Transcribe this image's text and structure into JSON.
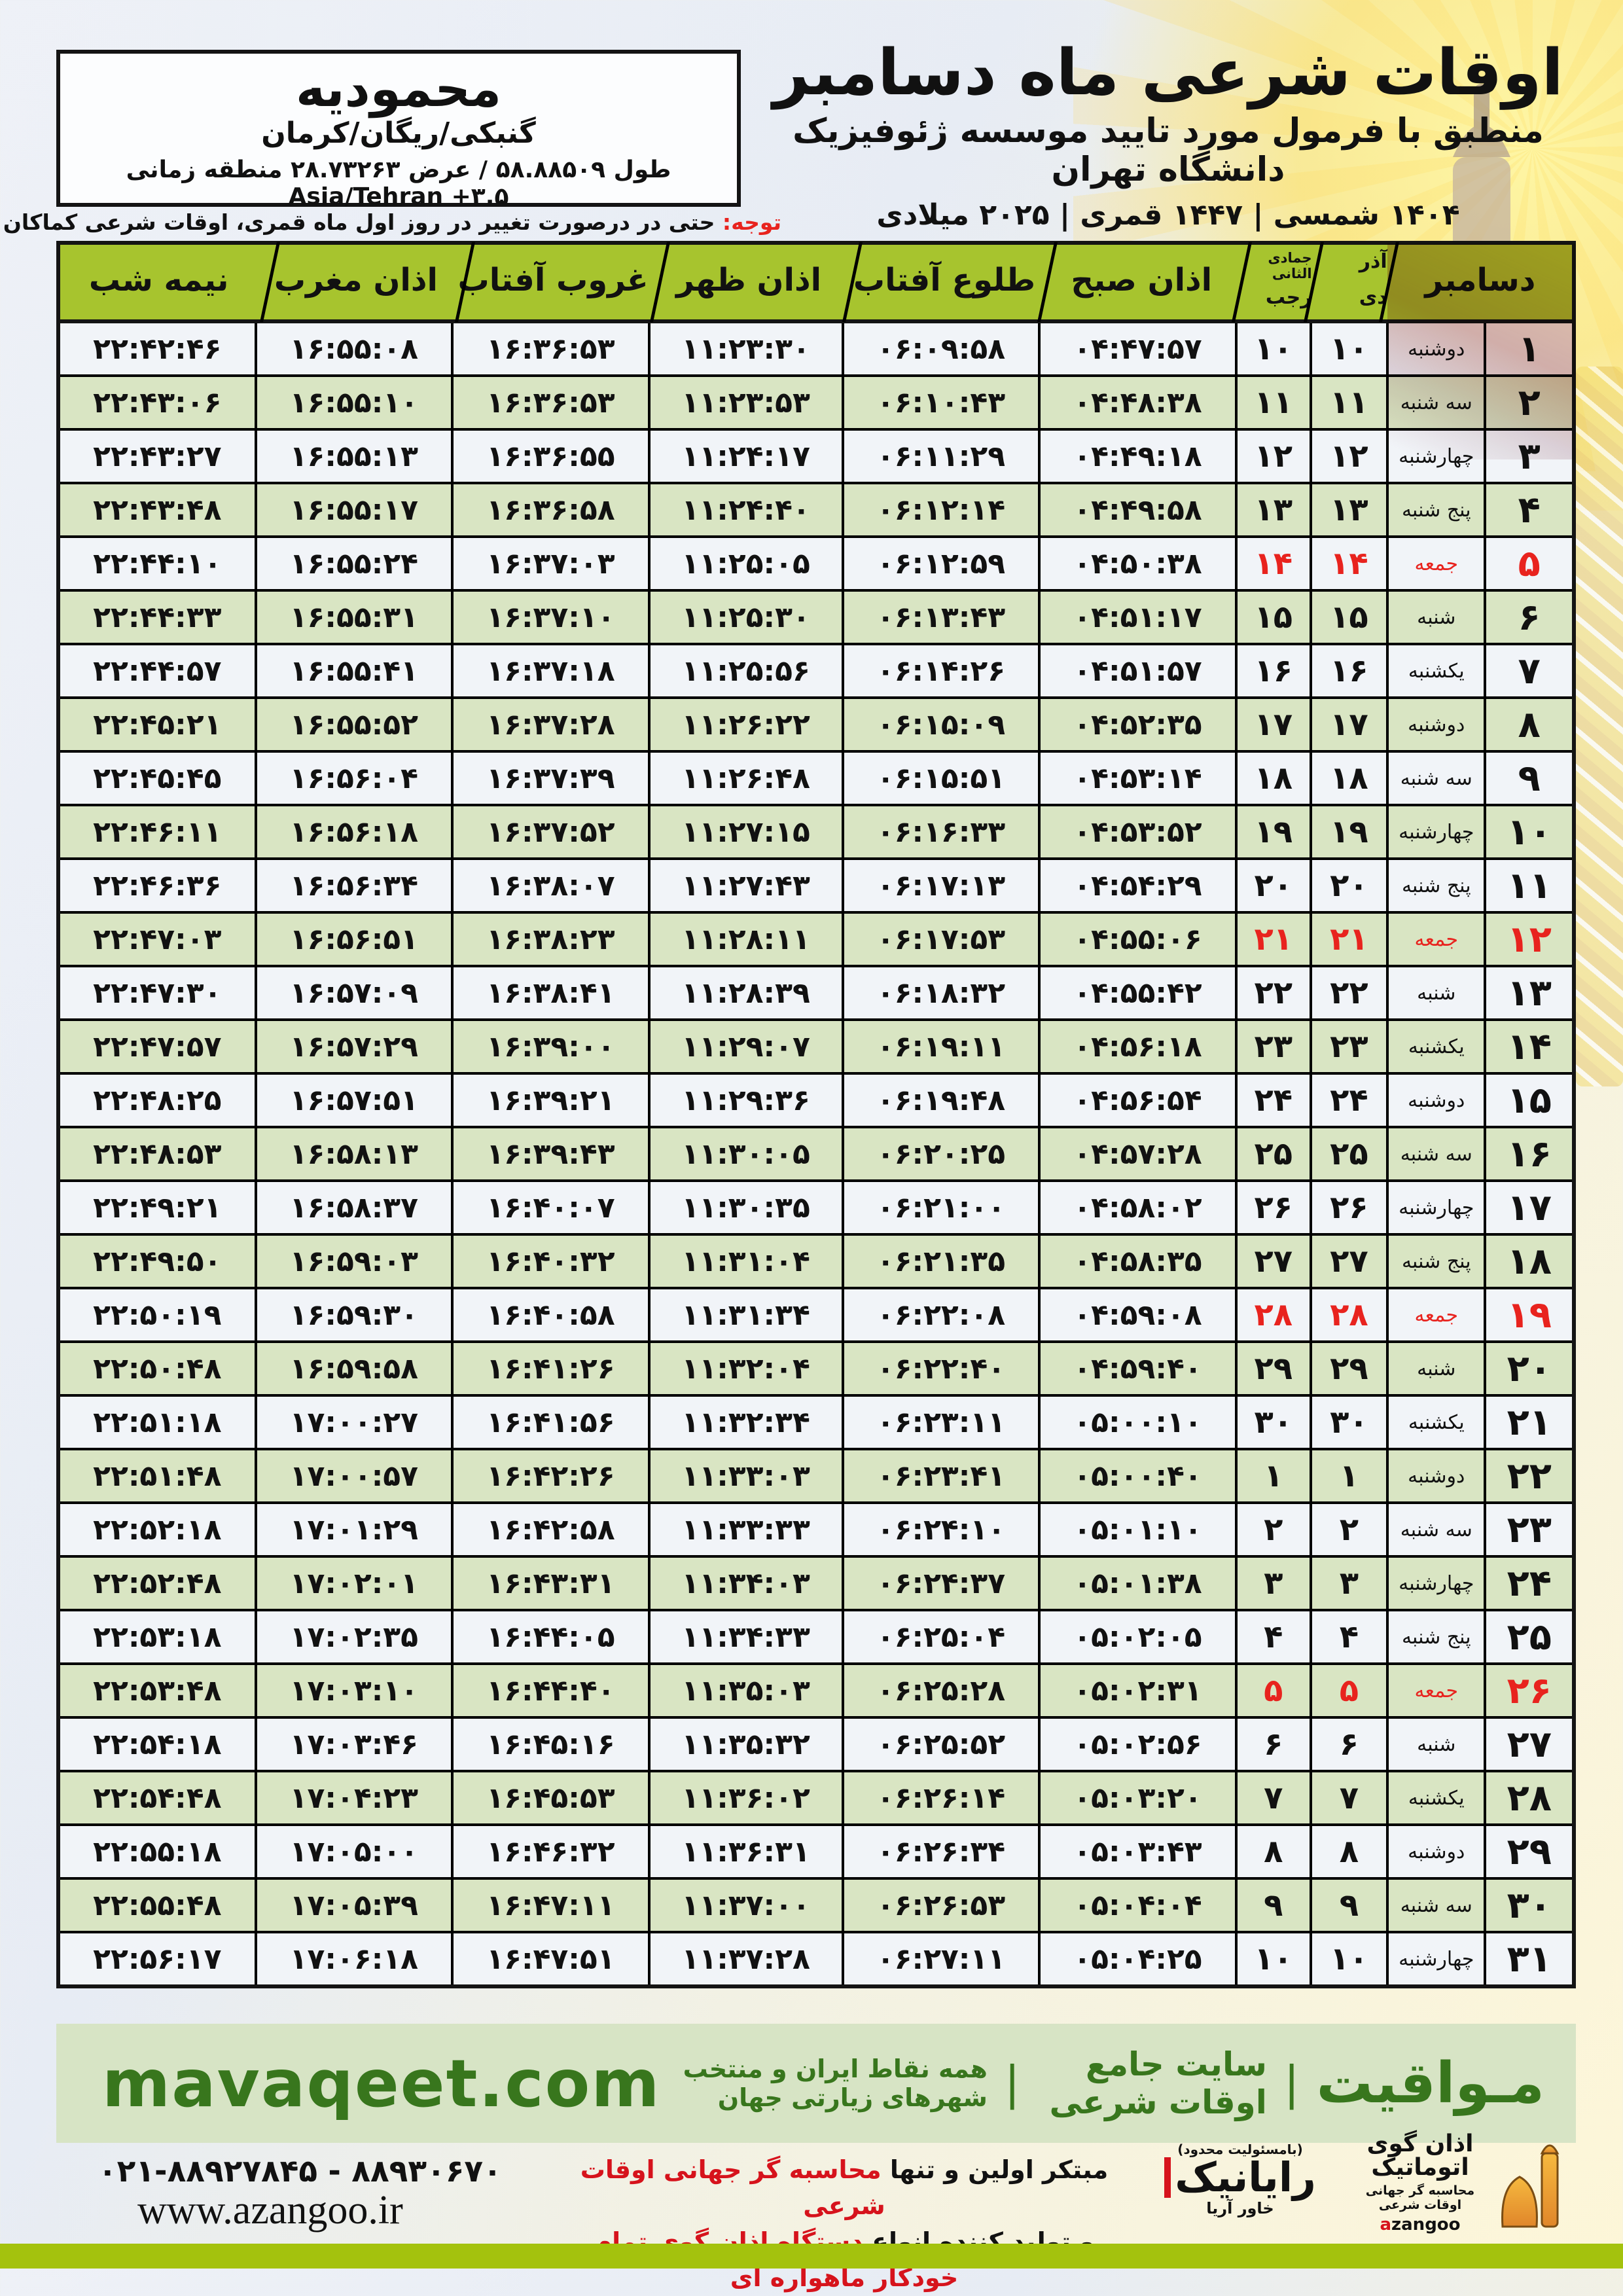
{
  "location_box": {
    "city": "محمودیه",
    "region": "گنبکی/ریگان/کرمان",
    "coords_fa": "طول ۵۸.۸۸۵۰۹ / عرض ۲۸.۷۳۲۶۳ منطقه زمانی",
    "coords_tz": "Asia/Tehran +۳.۵"
  },
  "header": {
    "title": "اوقات شرعی ماه دسامبر",
    "subtitle": "منطبق با فرمول مورد تایید موسسه ژئوفیزیک دانشگاه تهران",
    "years": "۱۴۰۴ شمسی | ۱۴۴۷ قمری | ۲۰۲۵ میلادی"
  },
  "notice": {
    "label": "توجه:",
    "text": " حتی در درصورت تغییر در روز اول ماه قمری، اوقات شرعی کماکان برای روزهای شمسی و میلادی معتبر است."
  },
  "table": {
    "headers": {
      "december": "دسامبر",
      "azar": "آذر",
      "dey": "دی",
      "jumada": "جمادی الثانی",
      "rajab": "رجب",
      "sobh": "اذان صبح",
      "sunrise": "طلوع آفتاب",
      "zohr": "اذان ظهر",
      "sunset": "غروب آفتاب",
      "maghreb": "اذان مغرب",
      "midnight": "نیمه شب"
    },
    "rows": [
      {
        "day": "۱",
        "weekday": "دوشنبه",
        "dey": "۱۰",
        "rajab": "۱۰",
        "sobh": "۰۴:۴۷:۵۷",
        "sunrise": "۰۶:۰۹:۵۸",
        "zohr": "۱۱:۲۳:۳۰",
        "sunset": "۱۶:۳۶:۵۳",
        "maghreb": "۱۶:۵۵:۰۸",
        "midnight": "۲۲:۴۲:۴۶",
        "friday": false
      },
      {
        "day": "۲",
        "weekday": "سه شنبه",
        "dey": "۱۱",
        "rajab": "۱۱",
        "sobh": "۰۴:۴۸:۳۸",
        "sunrise": "۰۶:۱۰:۴۳",
        "zohr": "۱۱:۲۳:۵۳",
        "sunset": "۱۶:۳۶:۵۳",
        "maghreb": "۱۶:۵۵:۱۰",
        "midnight": "۲۲:۴۳:۰۶",
        "friday": false
      },
      {
        "day": "۳",
        "weekday": "چهارشنبه",
        "dey": "۱۲",
        "rajab": "۱۲",
        "sobh": "۰۴:۴۹:۱۸",
        "sunrise": "۰۶:۱۱:۲۹",
        "zohr": "۱۱:۲۴:۱۷",
        "sunset": "۱۶:۳۶:۵۵",
        "maghreb": "۱۶:۵۵:۱۳",
        "midnight": "۲۲:۴۳:۲۷",
        "friday": false
      },
      {
        "day": "۴",
        "weekday": "پنج شنبه",
        "dey": "۱۳",
        "rajab": "۱۳",
        "sobh": "۰۴:۴۹:۵۸",
        "sunrise": "۰۶:۱۲:۱۴",
        "zohr": "۱۱:۲۴:۴۰",
        "sunset": "۱۶:۳۶:۵۸",
        "maghreb": "۱۶:۵۵:۱۷",
        "midnight": "۲۲:۴۳:۴۸",
        "friday": false
      },
      {
        "day": "۵",
        "weekday": "جمعه",
        "dey": "۱۴",
        "rajab": "۱۴",
        "sobh": "۰۴:۵۰:۳۸",
        "sunrise": "۰۶:۱۲:۵۹",
        "zohr": "۱۱:۲۵:۰۵",
        "sunset": "۱۶:۳۷:۰۳",
        "maghreb": "۱۶:۵۵:۲۴",
        "midnight": "۲۲:۴۴:۱۰",
        "friday": true
      },
      {
        "day": "۶",
        "weekday": "شنبه",
        "dey": "۱۵",
        "rajab": "۱۵",
        "sobh": "۰۴:۵۱:۱۷",
        "sunrise": "۰۶:۱۳:۴۳",
        "zohr": "۱۱:۲۵:۳۰",
        "sunset": "۱۶:۳۷:۱۰",
        "maghreb": "۱۶:۵۵:۳۱",
        "midnight": "۲۲:۴۴:۳۳",
        "friday": false
      },
      {
        "day": "۷",
        "weekday": "یکشنبه",
        "dey": "۱۶",
        "rajab": "۱۶",
        "sobh": "۰۴:۵۱:۵۷",
        "sunrise": "۰۶:۱۴:۲۶",
        "zohr": "۱۱:۲۵:۵۶",
        "sunset": "۱۶:۳۷:۱۸",
        "maghreb": "۱۶:۵۵:۴۱",
        "midnight": "۲۲:۴۴:۵۷",
        "friday": false
      },
      {
        "day": "۸",
        "weekday": "دوشنبه",
        "dey": "۱۷",
        "rajab": "۱۷",
        "sobh": "۰۴:۵۲:۳۵",
        "sunrise": "۰۶:۱۵:۰۹",
        "zohr": "۱۱:۲۶:۲۲",
        "sunset": "۱۶:۳۷:۲۸",
        "maghreb": "۱۶:۵۵:۵۲",
        "midnight": "۲۲:۴۵:۲۱",
        "friday": false
      },
      {
        "day": "۹",
        "weekday": "سه شنبه",
        "dey": "۱۸",
        "rajab": "۱۸",
        "sobh": "۰۴:۵۳:۱۴",
        "sunrise": "۰۶:۱۵:۵۱",
        "zohr": "۱۱:۲۶:۴۸",
        "sunset": "۱۶:۳۷:۳۹",
        "maghreb": "۱۶:۵۶:۰۴",
        "midnight": "۲۲:۴۵:۴۵",
        "friday": false
      },
      {
        "day": "۱۰",
        "weekday": "چهارشنبه",
        "dey": "۱۹",
        "rajab": "۱۹",
        "sobh": "۰۴:۵۳:۵۲",
        "sunrise": "۰۶:۱۶:۳۳",
        "zohr": "۱۱:۲۷:۱۵",
        "sunset": "۱۶:۳۷:۵۲",
        "maghreb": "۱۶:۵۶:۱۸",
        "midnight": "۲۲:۴۶:۱۱",
        "friday": false
      },
      {
        "day": "۱۱",
        "weekday": "پنج شنبه",
        "dey": "۲۰",
        "rajab": "۲۰",
        "sobh": "۰۴:۵۴:۲۹",
        "sunrise": "۰۶:۱۷:۱۳",
        "zohr": "۱۱:۲۷:۴۳",
        "sunset": "۱۶:۳۸:۰۷",
        "maghreb": "۱۶:۵۶:۳۴",
        "midnight": "۲۲:۴۶:۳۶",
        "friday": false
      },
      {
        "day": "۱۲",
        "weekday": "جمعه",
        "dey": "۲۱",
        "rajab": "۲۱",
        "sobh": "۰۴:۵۵:۰۶",
        "sunrise": "۰۶:۱۷:۵۳",
        "zohr": "۱۱:۲۸:۱۱",
        "sunset": "۱۶:۳۸:۲۳",
        "maghreb": "۱۶:۵۶:۵۱",
        "midnight": "۲۲:۴۷:۰۳",
        "friday": true
      },
      {
        "day": "۱۳",
        "weekday": "شنبه",
        "dey": "۲۲",
        "rajab": "۲۲",
        "sobh": "۰۴:۵۵:۴۲",
        "sunrise": "۰۶:۱۸:۳۲",
        "zohr": "۱۱:۲۸:۳۹",
        "sunset": "۱۶:۳۸:۴۱",
        "maghreb": "۱۶:۵۷:۰۹",
        "midnight": "۲۲:۴۷:۳۰",
        "friday": false
      },
      {
        "day": "۱۴",
        "weekday": "یکشنبه",
        "dey": "۲۳",
        "rajab": "۲۳",
        "sobh": "۰۴:۵۶:۱۸",
        "sunrise": "۰۶:۱۹:۱۱",
        "zohr": "۱۱:۲۹:۰۷",
        "sunset": "۱۶:۳۹:۰۰",
        "maghreb": "۱۶:۵۷:۲۹",
        "midnight": "۲۲:۴۷:۵۷",
        "friday": false
      },
      {
        "day": "۱۵",
        "weekday": "دوشنبه",
        "dey": "۲۴",
        "rajab": "۲۴",
        "sobh": "۰۴:۵۶:۵۴",
        "sunrise": "۰۶:۱۹:۴۸",
        "zohr": "۱۱:۲۹:۳۶",
        "sunset": "۱۶:۳۹:۲۱",
        "maghreb": "۱۶:۵۷:۵۱",
        "midnight": "۲۲:۴۸:۲۵",
        "friday": false
      },
      {
        "day": "۱۶",
        "weekday": "سه شنبه",
        "dey": "۲۵",
        "rajab": "۲۵",
        "sobh": "۰۴:۵۷:۲۸",
        "sunrise": "۰۶:۲۰:۲۵",
        "zohr": "۱۱:۳۰:۰۵",
        "sunset": "۱۶:۳۹:۴۳",
        "maghreb": "۱۶:۵۸:۱۳",
        "midnight": "۲۲:۴۸:۵۳",
        "friday": false
      },
      {
        "day": "۱۷",
        "weekday": "چهارشنبه",
        "dey": "۲۶",
        "rajab": "۲۶",
        "sobh": "۰۴:۵۸:۰۲",
        "sunrise": "۰۶:۲۱:۰۰",
        "zohr": "۱۱:۳۰:۳۵",
        "sunset": "۱۶:۴۰:۰۷",
        "maghreb": "۱۶:۵۸:۳۷",
        "midnight": "۲۲:۴۹:۲۱",
        "friday": false
      },
      {
        "day": "۱۸",
        "weekday": "پنج شنبه",
        "dey": "۲۷",
        "rajab": "۲۷",
        "sobh": "۰۴:۵۸:۳۵",
        "sunrise": "۰۶:۲۱:۳۵",
        "zohr": "۱۱:۳۱:۰۴",
        "sunset": "۱۶:۴۰:۳۲",
        "maghreb": "۱۶:۵۹:۰۳",
        "midnight": "۲۲:۴۹:۵۰",
        "friday": false
      },
      {
        "day": "۱۹",
        "weekday": "جمعه",
        "dey": "۲۸",
        "rajab": "۲۸",
        "sobh": "۰۴:۵۹:۰۸",
        "sunrise": "۰۶:۲۲:۰۸",
        "zohr": "۱۱:۳۱:۳۴",
        "sunset": "۱۶:۴۰:۵۸",
        "maghreb": "۱۶:۵۹:۳۰",
        "midnight": "۲۲:۵۰:۱۹",
        "friday": true
      },
      {
        "day": "۲۰",
        "weekday": "شنبه",
        "dey": "۲۹",
        "rajab": "۲۹",
        "sobh": "۰۴:۵۹:۴۰",
        "sunrise": "۰۶:۲۲:۴۰",
        "zohr": "۱۱:۳۲:۰۴",
        "sunset": "۱۶:۴۱:۲۶",
        "maghreb": "۱۶:۵۹:۵۸",
        "midnight": "۲۲:۵۰:۴۸",
        "friday": false
      },
      {
        "day": "۲۱",
        "weekday": "یکشنبه",
        "dey": "۳۰",
        "rajab": "۳۰",
        "sobh": "۰۵:۰۰:۱۰",
        "sunrise": "۰۶:۲۳:۱۱",
        "zohr": "۱۱:۳۲:۳۴",
        "sunset": "۱۶:۴۱:۵۶",
        "maghreb": "۱۷:۰۰:۲۷",
        "midnight": "۲۲:۵۱:۱۸",
        "friday": false
      },
      {
        "day": "۲۲",
        "weekday": "دوشنبه",
        "dey": "۱",
        "rajab": "۱",
        "sobh": "۰۵:۰۰:۴۰",
        "sunrise": "۰۶:۲۳:۴۱",
        "zohr": "۱۱:۳۳:۰۳",
        "sunset": "۱۶:۴۲:۲۶",
        "maghreb": "۱۷:۰۰:۵۷",
        "midnight": "۲۲:۵۱:۴۸",
        "friday": false
      },
      {
        "day": "۲۳",
        "weekday": "سه شنبه",
        "dey": "۲",
        "rajab": "۲",
        "sobh": "۰۵:۰۱:۱۰",
        "sunrise": "۰۶:۲۴:۱۰",
        "zohr": "۱۱:۳۳:۳۳",
        "sunset": "۱۶:۴۲:۵۸",
        "maghreb": "۱۷:۰۱:۲۹",
        "midnight": "۲۲:۵۲:۱۸",
        "friday": false
      },
      {
        "day": "۲۴",
        "weekday": "چهارشنبه",
        "dey": "۳",
        "rajab": "۳",
        "sobh": "۰۵:۰۱:۳۸",
        "sunrise": "۰۶:۲۴:۳۷",
        "zohr": "۱۱:۳۴:۰۳",
        "sunset": "۱۶:۴۳:۳۱",
        "maghreb": "۱۷:۰۲:۰۱",
        "midnight": "۲۲:۵۲:۴۸",
        "friday": false
      },
      {
        "day": "۲۵",
        "weekday": "پنج شنبه",
        "dey": "۴",
        "rajab": "۴",
        "sobh": "۰۵:۰۲:۰۵",
        "sunrise": "۰۶:۲۵:۰۴",
        "zohr": "۱۱:۳۴:۳۳",
        "sunset": "۱۶:۴۴:۰۵",
        "maghreb": "۱۷:۰۲:۳۵",
        "midnight": "۲۲:۵۳:۱۸",
        "friday": false
      },
      {
        "day": "۲۶",
        "weekday": "جمعه",
        "dey": "۵",
        "rajab": "۵",
        "sobh": "۰۵:۰۲:۳۱",
        "sunrise": "۰۶:۲۵:۲۸",
        "zohr": "۱۱:۳۵:۰۳",
        "sunset": "۱۶:۴۴:۴۰",
        "maghreb": "۱۷:۰۳:۱۰",
        "midnight": "۲۲:۵۳:۴۸",
        "friday": true
      },
      {
        "day": "۲۷",
        "weekday": "شنبه",
        "dey": "۶",
        "rajab": "۶",
        "sobh": "۰۵:۰۲:۵۶",
        "sunrise": "۰۶:۲۵:۵۲",
        "zohr": "۱۱:۳۵:۳۲",
        "sunset": "۱۶:۴۵:۱۶",
        "maghreb": "۱۷:۰۳:۴۶",
        "midnight": "۲۲:۵۴:۱۸",
        "friday": false
      },
      {
        "day": "۲۸",
        "weekday": "یکشنبه",
        "dey": "۷",
        "rajab": "۷",
        "sobh": "۰۵:۰۳:۲۰",
        "sunrise": "۰۶:۲۶:۱۴",
        "zohr": "۱۱:۳۶:۰۲",
        "sunset": "۱۶:۴۵:۵۳",
        "maghreb": "۱۷:۰۴:۲۳",
        "midnight": "۲۲:۵۴:۴۸",
        "friday": false
      },
      {
        "day": "۲۹",
        "weekday": "دوشنبه",
        "dey": "۸",
        "rajab": "۸",
        "sobh": "۰۵:۰۳:۴۳",
        "sunrise": "۰۶:۲۶:۳۴",
        "zohr": "۱۱:۳۶:۳۱",
        "sunset": "۱۶:۴۶:۳۲",
        "maghreb": "۱۷:۰۵:۰۰",
        "midnight": "۲۲:۵۵:۱۸",
        "friday": false
      },
      {
        "day": "۳۰",
        "weekday": "سه شنبه",
        "dey": "۹",
        "rajab": "۹",
        "sobh": "۰۵:۰۴:۰۴",
        "sunrise": "۰۶:۲۶:۵۳",
        "zohr": "۱۱:۳۷:۰۰",
        "sunset": "۱۶:۴۷:۱۱",
        "maghreb": "۱۷:۰۵:۳۹",
        "midnight": "۲۲:۵۵:۴۸",
        "friday": false
      },
      {
        "day": "۳۱",
        "weekday": "چهارشنبه",
        "dey": "۱۰",
        "rajab": "۱۰",
        "sobh": "۰۵:۰۴:۲۵",
        "sunrise": "۰۶:۲۷:۱۱",
        "zohr": "۱۱:۳۷:۲۸",
        "sunset": "۱۶:۴۷:۵۱",
        "maghreb": "۱۷:۰۶:۱۸",
        "midnight": "۲۲:۵۶:۱۷",
        "friday": false
      }
    ]
  },
  "footer": {
    "site_bar": {
      "latin": "mavaqeet.com",
      "brand": "مـواقیت",
      "sep": "|",
      "tagline1": "سایت جامع اوقات شرعی",
      "tagline2": "همه نقاط ایران و منتخب شهرهای زیارتی جهان"
    },
    "bottom": {
      "phones": "۰۲۱-۸۸۹۲۷۸۴۵ - ۸۸۹۳۰۶۷۰",
      "website": "www.azangoo.ir",
      "desc_line1_black": "مبتکر اولین و تنها ",
      "desc_line1_red": "محاسبه گر جهانی اوقات شرعی",
      "desc_line2_black": "و تولید کننده انواع ",
      "desc_line2_red": "دستگاه اذان گوی تمام خودکار ماهواره ای",
      "rayanik_tiny": "(بامسئولیت محدود)",
      "rayanik_name": "رایانیک",
      "rayanik_sub": "خاور آریا",
      "azangoo_title": "اذان گوی اتوماتیک",
      "azangoo_sub": "محاسبه گر جهانی اوقات شرعی",
      "azangoo_latin_a": "a",
      "azangoo_latin_rest": "zangoo"
    }
  },
  "colors": {
    "header_green": "#a7c42e",
    "row_green": "#d9e5c3",
    "row_white": "#f1f4f8",
    "friday_red": "#e8231e",
    "footer_green": "#d7e4c5",
    "brand_green": "#38761d",
    "lime": "#a4c20d"
  }
}
